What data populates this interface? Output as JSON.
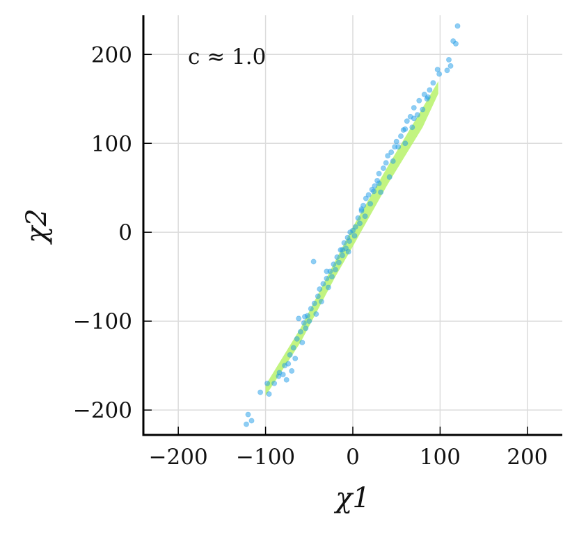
{
  "chart_data": {
    "type": "scatter",
    "title": "",
    "xlabel": "χ1",
    "ylabel": "χ2",
    "xlim": [
      -240,
      240
    ],
    "ylim": [
      -228,
      244
    ],
    "xticks": [
      -200,
      -100,
      0,
      100,
      200
    ],
    "yticks": [
      -200,
      -100,
      0,
      100,
      200
    ],
    "xtick_labels": [
      "−200",
      "−100",
      "0",
      "100",
      "200"
    ],
    "ytick_labels": [
      "−200",
      "−100",
      "0",
      "100",
      "200"
    ],
    "grid": true,
    "annotation": "c ≈ 1.0",
    "series": [
      {
        "kind": "band",
        "color": "#b7f26a",
        "upper": [
          [
            -100,
            -172
          ],
          [
            -60,
            -108
          ],
          [
            -20,
            -32
          ],
          [
            0,
            6
          ],
          [
            40,
            74
          ],
          [
            80,
            140
          ],
          [
            98,
            170
          ]
        ],
        "lower": [
          [
            98,
            156
          ],
          [
            80,
            118
          ],
          [
            40,
            54
          ],
          [
            0,
            -16
          ],
          [
            -20,
            -50
          ],
          [
            -60,
            -124
          ],
          [
            -100,
            -184
          ]
        ]
      },
      {
        "kind": "points",
        "color": "#1e9be8",
        "points": [
          [
            120,
            232
          ],
          [
            115,
            215
          ],
          [
            118,
            212
          ],
          [
            97,
            183
          ],
          [
            110,
            194
          ],
          [
            112,
            187
          ],
          [
            108,
            182
          ],
          [
            99,
            178
          ],
          [
            92,
            168
          ],
          [
            88,
            160
          ],
          [
            82,
            155
          ],
          [
            86,
            152
          ],
          [
            76,
            148
          ],
          [
            80,
            138
          ],
          [
            70,
            140
          ],
          [
            74,
            132
          ],
          [
            66,
            130
          ],
          [
            62,
            125
          ],
          [
            68,
            118
          ],
          [
            58,
            115
          ],
          [
            55,
            108
          ],
          [
            50,
            102
          ],
          [
            60,
            100
          ],
          [
            48,
            96
          ],
          [
            44,
            90
          ],
          [
            40,
            86
          ],
          [
            46,
            80
          ],
          [
            38,
            78
          ],
          [
            35,
            72
          ],
          [
            30,
            66
          ],
          [
            42,
            62
          ],
          [
            28,
            58
          ],
          [
            25,
            52
          ],
          [
            22,
            48
          ],
          [
            32,
            45
          ],
          [
            18,
            42
          ],
          [
            15,
            38
          ],
          [
            20,
            32
          ],
          [
            12,
            30
          ],
          [
            10,
            24
          ],
          [
            14,
            18
          ],
          [
            6,
            16
          ],
          [
            8,
            10
          ],
          [
            3,
            6
          ],
          [
            0,
            2
          ],
          [
            -3,
            0
          ],
          [
            2,
            -4
          ],
          [
            -6,
            -6
          ],
          [
            -4,
            -10
          ],
          [
            -10,
            -12
          ],
          [
            -8,
            -18
          ],
          [
            -14,
            -20
          ],
          [
            -12,
            -26
          ],
          [
            -18,
            -28
          ],
          [
            -16,
            -34
          ],
          [
            -22,
            -36
          ],
          [
            -20,
            -42
          ],
          [
            -26,
            -44
          ],
          [
            -24,
            -50
          ],
          [
            -30,
            -52
          ],
          [
            -34,
            -58
          ],
          [
            -28,
            -62
          ],
          [
            -38,
            -64
          ],
          [
            -40,
            -72
          ],
          [
            -36,
            -78
          ],
          [
            -44,
            -80
          ],
          [
            -48,
            -86
          ],
          [
            -42,
            -92
          ],
          [
            -52,
            -94
          ],
          [
            -50,
            -100
          ],
          [
            -56,
            -102
          ],
          [
            -54,
            -108
          ],
          [
            -60,
            -112
          ],
          [
            -64,
            -120
          ],
          [
            -58,
            -124
          ],
          [
            -68,
            -130
          ],
          [
            -72,
            -138
          ],
          [
            -66,
            -142
          ],
          [
            -74,
            -148
          ],
          [
            -78,
            -150
          ],
          [
            -70,
            -156
          ],
          [
            -80,
            -160
          ],
          [
            -84,
            -158
          ],
          [
            -76,
            -166
          ],
          [
            -90,
            -170
          ],
          [
            -98,
            -170
          ],
          [
            -96,
            -182
          ],
          [
            -106,
            -180
          ],
          [
            -120,
            -205
          ],
          [
            -116,
            -212
          ],
          [
            -122,
            -216
          ],
          [
            -45,
            -33
          ],
          [
            -5,
            -22
          ],
          [
            60,
            116
          ],
          [
            -62,
            -97
          ],
          [
            30,
            55
          ],
          [
            70,
            128
          ],
          [
            85,
            150
          ],
          [
            -30,
            -44
          ],
          [
            10,
            26
          ],
          [
            52,
            96
          ],
          [
            24,
            46
          ],
          [
            -12,
            -20
          ],
          [
            -55,
            -95
          ],
          [
            -85,
            -162
          ]
        ]
      }
    ]
  }
}
